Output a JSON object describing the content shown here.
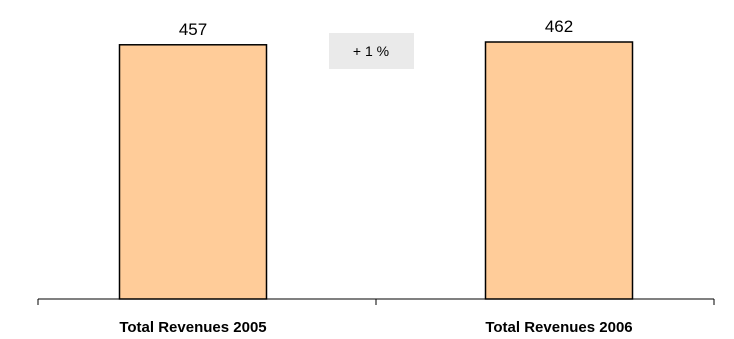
{
  "chart_data": {
    "type": "bar",
    "categories": [
      "Total Revenues 2005",
      "Total Revenues 2006"
    ],
    "values": [
      457,
      462
    ],
    "data_labels": [
      "457",
      "462"
    ],
    "annotation": "+ 1 %",
    "title": "",
    "xlabel": "",
    "ylabel": "",
    "ylim": [
      0,
      462
    ],
    "grid": false,
    "bar_color": "#FFCC99",
    "annotation_bg": "#EAEAEA"
  }
}
